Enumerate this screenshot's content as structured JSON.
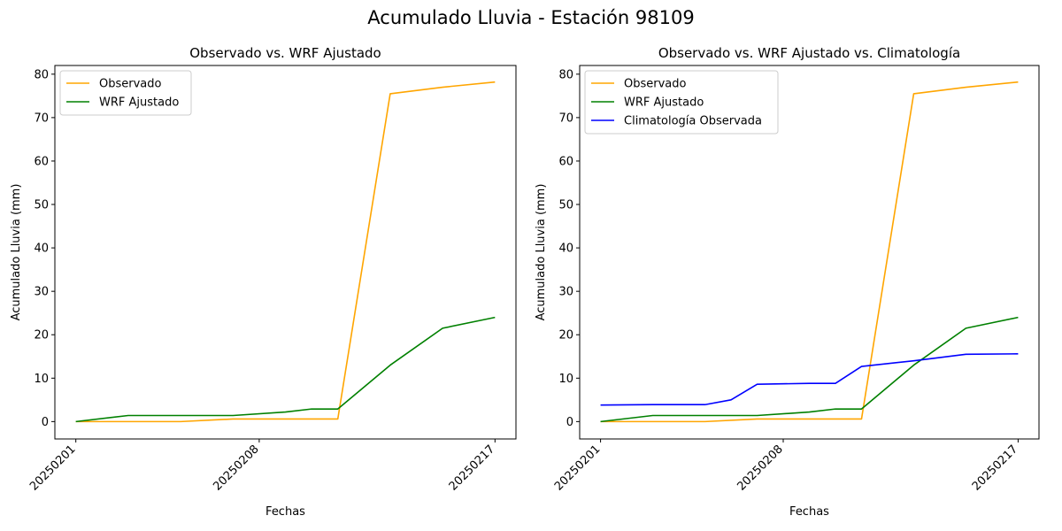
{
  "figure_title": "Acumulado Lluvia - Estación 98109",
  "colors": {
    "observado": "#FFA500",
    "wrf": "#008000",
    "climatologia": "#0000FF"
  },
  "chart_data": [
    {
      "type": "line",
      "title": "Observado vs. WRF Ajustado",
      "xlabel": "Fechas",
      "ylabel": "Acumulado Lluvia (mm)",
      "x": [
        "20250201",
        "20250202",
        "20250203",
        "20250204",
        "20250205",
        "20250206",
        "20250207",
        "20250208",
        "20250209",
        "20250210",
        "20250211",
        "20250212",
        "20250213",
        "20250214",
        "20250215",
        "20250216",
        "20250217"
      ],
      "xticks": [
        "20250201",
        "20250208",
        "20250217"
      ],
      "ylim": [
        -4,
        82
      ],
      "yticks": [
        "0",
        "10",
        "20",
        "30",
        "40",
        "50",
        "60",
        "70",
        "80"
      ],
      "legend": "upper left",
      "series": [
        {
          "name": "Observado",
          "color": "#FFA500",
          "points": [
            [
              "20250201",
              0
            ],
            [
              "20250203",
              0
            ],
            [
              "20250205",
              0
            ],
            [
              "20250207",
              0.6
            ],
            [
              "20250209",
              0.6
            ],
            [
              "20250211",
              0.6
            ],
            [
              "20250213",
              75.5
            ],
            [
              "20250215",
              77
            ],
            [
              "20250217",
              78.2
            ]
          ]
        },
        {
          "name": "WRF Ajustado",
          "color": "#008000",
          "points": [
            [
              "20250201",
              0
            ],
            [
              "20250203",
              1.4
            ],
            [
              "20250205",
              1.4
            ],
            [
              "20250207",
              1.4
            ],
            [
              "20250209",
              2.2
            ],
            [
              "20250210",
              2.9
            ],
            [
              "20250211",
              2.9
            ],
            [
              "20250213",
              13
            ],
            [
              "20250215",
              21.5
            ],
            [
              "20250217",
              24
            ]
          ]
        }
      ]
    },
    {
      "type": "line",
      "title": "Observado vs. WRF Ajustado vs. Climatología",
      "xlabel": "Fechas",
      "ylabel": "Acumulado Lluvia (mm)",
      "x": [
        "20250201",
        "20250202",
        "20250203",
        "20250204",
        "20250205",
        "20250206",
        "20250207",
        "20250208",
        "20250209",
        "20250210",
        "20250211",
        "20250212",
        "20250213",
        "20250214",
        "20250215",
        "20250216",
        "20250217"
      ],
      "xticks": [
        "20250201",
        "20250208",
        "20250217"
      ],
      "ylim": [
        -4,
        82
      ],
      "yticks": [
        "0",
        "10",
        "20",
        "30",
        "40",
        "50",
        "60",
        "70",
        "80"
      ],
      "legend": "upper left",
      "series": [
        {
          "name": "Observado",
          "color": "#FFA500",
          "points": [
            [
              "20250201",
              0
            ],
            [
              "20250203",
              0
            ],
            [
              "20250205",
              0
            ],
            [
              "20250207",
              0.6
            ],
            [
              "20250209",
              0.6
            ],
            [
              "20250211",
              0.6
            ],
            [
              "20250213",
              75.5
            ],
            [
              "20250215",
              77
            ],
            [
              "20250217",
              78.2
            ]
          ]
        },
        {
          "name": "WRF Ajustado",
          "color": "#008000",
          "points": [
            [
              "20250201",
              0
            ],
            [
              "20250203",
              1.4
            ],
            [
              "20250205",
              1.4
            ],
            [
              "20250207",
              1.4
            ],
            [
              "20250209",
              2.2
            ],
            [
              "20250210",
              2.9
            ],
            [
              "20250211",
              2.9
            ],
            [
              "20250213",
              13
            ],
            [
              "20250215",
              21.5
            ],
            [
              "20250217",
              24
            ]
          ]
        },
        {
          "name": "Climatología Observada",
          "color": "#0000FF",
          "points": [
            [
              "20250201",
              3.8
            ],
            [
              "20250203",
              3.9
            ],
            [
              "20250205",
              3.9
            ],
            [
              "20250206",
              5.0
            ],
            [
              "20250207",
              8.6
            ],
            [
              "20250209",
              8.8
            ],
            [
              "20250210",
              8.8
            ],
            [
              "20250211",
              12.7
            ],
            [
              "20250213",
              14.0
            ],
            [
              "20250215",
              15.5
            ],
            [
              "20250217",
              15.6
            ]
          ]
        }
      ]
    }
  ]
}
